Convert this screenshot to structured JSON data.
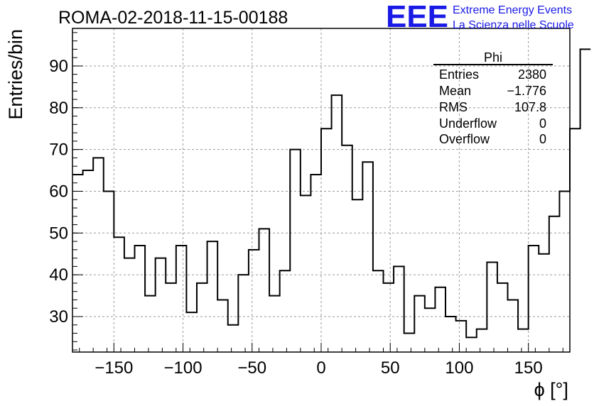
{
  "chart_data": {
    "type": "histogram",
    "title": "ROMA-02-2018-11-15-00188",
    "xlabel": "ϕ [°]",
    "ylabel": "Entries/bin",
    "xlim": [
      -180,
      180
    ],
    "ylim": [
      21.5,
      99
    ],
    "bin_width": 7.5,
    "xticks": [
      -150,
      -100,
      -50,
      0,
      50,
      100,
      150
    ],
    "yticks": [
      30,
      40,
      50,
      60,
      70,
      80,
      90
    ],
    "grid": true,
    "values": [
      64,
      65,
      68,
      60,
      49,
      44,
      47,
      35,
      44,
      38,
      47,
      31,
      38,
      48,
      34,
      28,
      40,
      46,
      51,
      35,
      41,
      70,
      59,
      64,
      75,
      83,
      71,
      58,
      67,
      41,
      38,
      42,
      26,
      35,
      32,
      37,
      30,
      29,
      25,
      27,
      43,
      38,
      34,
      27,
      47,
      45,
      54,
      60,
      75,
      94
    ],
    "stats": {
      "name": "Phi",
      "rows": [
        {
          "label": "Entries",
          "value": "2380"
        },
        {
          "label": "Mean",
          "value": "−1.776"
        },
        {
          "label": "RMS",
          "value": "107.8"
        },
        {
          "label": "Underflow",
          "value": "0"
        },
        {
          "label": "Overflow",
          "value": "0"
        }
      ]
    }
  },
  "logo": {
    "mark": "EEE",
    "line1": "Extreme Energy Events",
    "line2": "La Scienza nelle Scuole",
    "color": "#1a1ae6"
  }
}
